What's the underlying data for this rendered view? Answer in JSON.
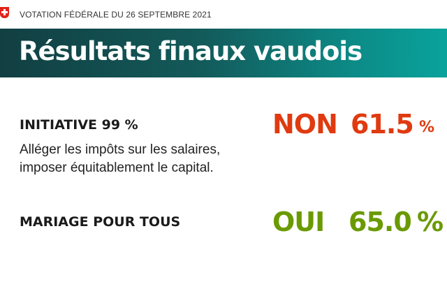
{
  "header": {
    "supertitle": "VOTATION FÉDÉRALE DU 26 SEPTEMBRE 2021",
    "title": "Résultats finaux vaudois"
  },
  "items": [
    {
      "title": "INITIATIVE 99 %",
      "description_lines": [
        "Alléger les impôts sur les salaires,",
        "imposer équitablement le capital."
      ],
      "verdict": "NON",
      "percent": "61.5",
      "unit": "%",
      "color": "#e03a10"
    },
    {
      "title": "MARIAGE POUR TOUS",
      "verdict": "OUI",
      "percent": "65.0",
      "unit": "%",
      "color": "#6a9a00"
    }
  ]
}
